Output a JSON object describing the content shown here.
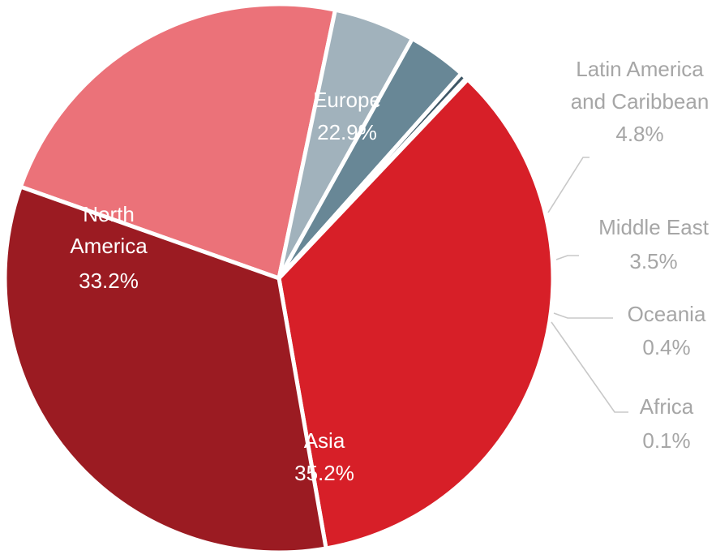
{
  "chart_data": {
    "type": "pie",
    "start_angle_deg": 160.5,
    "direction": "clockwise",
    "slices": [
      {
        "name": "Europe",
        "value": 22.9,
        "label": "22.9%",
        "color": "#EB7279",
        "label_color": "#ffffff",
        "label_position": "inside"
      },
      {
        "name": "Latin America and Caribbean",
        "name_lines": [
          "Latin America",
          "and Caribbean"
        ],
        "value": 4.8,
        "label": "4.8%",
        "color": "#A1B2BC",
        "label_color": "#a6a6a6",
        "label_position": "outside"
      },
      {
        "name": "Middle East",
        "value": 3.5,
        "label": "3.5%",
        "color": "#688796",
        "label_color": "#a6a6a6",
        "label_position": "outside"
      },
      {
        "name": "Oceania",
        "value": 0.4,
        "label": "0.4%",
        "color": "#3E5766",
        "label_color": "#a6a6a6",
        "label_position": "outside"
      },
      {
        "name": "Africa",
        "value": 0.1,
        "label": "0.1%",
        "color": "#2A3D48",
        "label_color": "#a6a6a6",
        "label_position": "outside"
      },
      {
        "name": "Asia",
        "value": 35.2,
        "label": "35.2%",
        "color": "#D71F28",
        "label_color": "#ffffff",
        "label_position": "inside"
      },
      {
        "name": "North America",
        "name_lines": [
          "North",
          "America"
        ],
        "value": 33.2,
        "label": "33.2%",
        "color": "#9B1B22",
        "label_color": "#ffffff",
        "label_position": "inside"
      }
    ],
    "legend": "none"
  }
}
